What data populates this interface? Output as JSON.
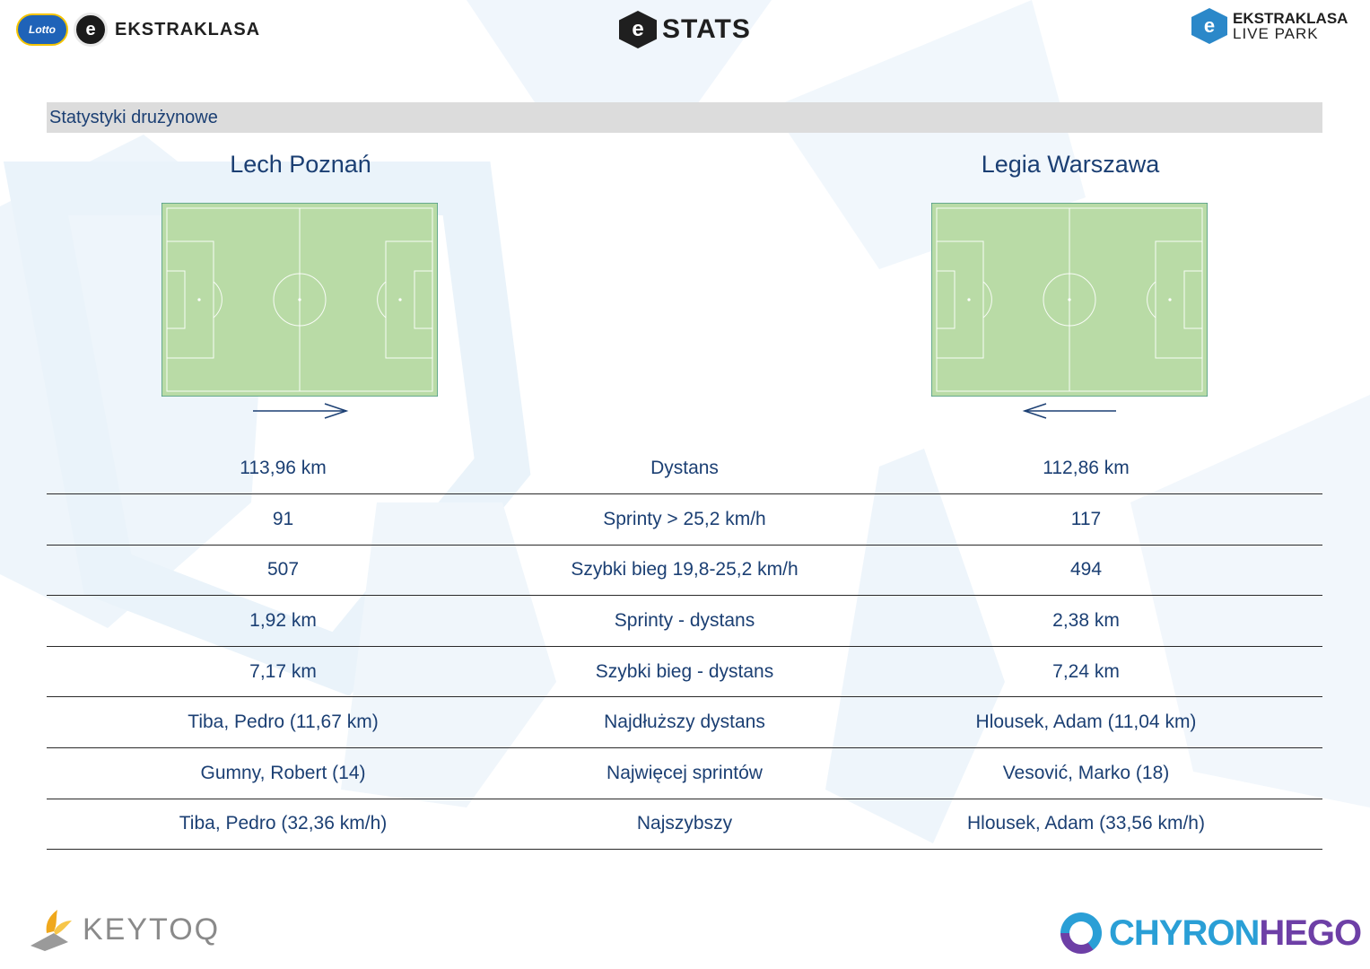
{
  "header": {
    "left_logo_badge": "Lotto",
    "left_logo_icon": "e",
    "left_logo_text": "EKSTRAKLASA",
    "center_logo_icon": "e",
    "center_logo_text": "STATS",
    "right_logo_icon": "e",
    "right_logo_line1": "EKSTRAKLASA",
    "right_logo_line2": "LIVE PARK"
  },
  "section": {
    "title": "Statystyki drużynowe"
  },
  "teams": {
    "home": {
      "name": "Lech Poznań",
      "direction": "right"
    },
    "away": {
      "name": "Legia Warszawa",
      "direction": "left"
    }
  },
  "colors": {
    "text": "#1b3f73",
    "pitch": "#b9dba6",
    "heat": "#e0301e",
    "section_bar": "#dcdcdc"
  },
  "stats": [
    {
      "home": "113,96 km",
      "label": "Dystans",
      "away": "112,86 km"
    },
    {
      "home": "91",
      "label": "Sprinty > 25,2 km/h",
      "away": "117"
    },
    {
      "home": "507",
      "label": "Szybki bieg 19,8-25,2 km/h",
      "away": "494"
    },
    {
      "home": "1,92 km",
      "label": "Sprinty - dystans",
      "away": "2,38 km"
    },
    {
      "home": "7,17 km",
      "label": "Szybki bieg - dystans",
      "away": "7,24 km"
    },
    {
      "home": "Tiba, Pedro (11,67 km)",
      "label": "Najdłuższy dystans",
      "away": "Hlousek, Adam (11,04 km)"
    },
    {
      "home": "Gumny, Robert (14)",
      "label": "Najwięcej sprintów",
      "away": "Vesović, Marko (18)"
    },
    {
      "home": "Tiba, Pedro (32,36 km/h)",
      "label": "Najszybszy",
      "away": "Hlousek, Adam (33,56 km/h)"
    }
  ],
  "footer": {
    "left_logo_text": "KEYTOQ",
    "right_logo_part1": "CHYRON",
    "right_logo_part2": "HEGO"
  }
}
